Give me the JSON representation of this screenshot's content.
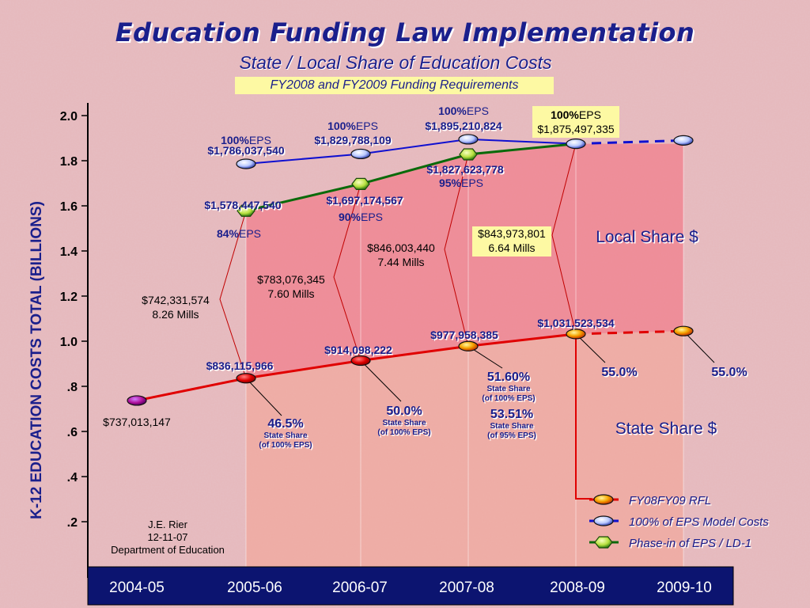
{
  "title": "Education Funding Law Implementation",
  "subtitle": "State / Local Share of Education Costs",
  "banner": "FY2008 and FY2009 Funding Requirements",
  "colors": {
    "rfl": "#e00000",
    "eps": "#1010d0",
    "phase_in": "#0a6a0a",
    "axis_band": "#0c1470",
    "label_blue": "#1a1f8c",
    "local_fill": "#f46a7a",
    "state_fill": "#f5a08e"
  },
  "chart_data": {
    "type": "line",
    "xlabel": "",
    "ylabel": "K-12 EDUCATION COSTS  TOTAL (BILLIONS)",
    "categories": [
      "2004-05",
      "2005-06",
      "2006-07",
      "2007-08",
      "2008-09",
      "2009-10"
    ],
    "ylim": [
      0,
      2.0
    ],
    "yticks": [
      ".2",
      ".4",
      ".6",
      ".8",
      "1.0",
      "1.2",
      "1.4",
      "1.6",
      "1.8",
      "2.0"
    ],
    "series": [
      {
        "name": "FY08FY09 RFL",
        "marker": "red",
        "values": [
          0.737,
          0.836,
          0.914,
          0.978,
          1.032,
          1.045
        ],
        "dashed_from_index": 4,
        "labels": [
          "$737,013,147",
          "$836,115,966",
          "$914,098,222",
          "$977,958,385",
          "$1,031,523,534",
          ""
        ]
      },
      {
        "name": "100% of EPS Model Costs",
        "marker": "blue",
        "values": [
          null,
          1.786,
          1.83,
          1.895,
          1.875,
          1.89
        ],
        "dashed_from_index": 4,
        "pct_labels": [
          "",
          "100%",
          "100%",
          "100%",
          "100%",
          ""
        ],
        "labels": [
          "",
          "$1,786,037,540",
          "$1,829,788,109",
          "$1,895,210,824",
          "$1,875,497,335",
          ""
        ]
      },
      {
        "name": "Phase-in of EPS / LD-1",
        "marker": "green",
        "values": [
          null,
          1.578,
          1.697,
          1.828,
          1.875,
          null
        ],
        "pct_labels": [
          "",
          "84%",
          "90%",
          "95%",
          "",
          ""
        ],
        "labels": [
          "",
          "$1,578,447,540",
          "$1,697,174,567",
          "$1,827,623,778",
          "",
          ""
        ]
      }
    ],
    "eps_suffix": "EPS",
    "local_share_labels": [
      {
        "index": 0,
        "value": "$742,331,574",
        "mills": "8.26 Mills"
      },
      {
        "index": 1,
        "value": "$783,076,345",
        "mills": "7.60 Mills"
      },
      {
        "index": 2,
        "value": "$846,003,440",
        "mills": "7.44 Mills"
      },
      {
        "index": 3,
        "value": "$843,973,801",
        "mills": "6.64 Mills"
      }
    ],
    "state_share_labels": [
      {
        "pct": "46.5%",
        "line1": "State Share",
        "line2": "(of 100% EPS)"
      },
      {
        "pct": "50.0%",
        "line1": "State Share",
        "line2": "(of 100% EPS)"
      },
      {
        "pct": "51.60%",
        "line1": "State Share",
        "line2": "(of 100% EPS)"
      },
      {
        "pct": "53.51%",
        "line1": "State Share",
        "line2": "(of 95% EPS)"
      },
      {
        "pct": "55.0%",
        "line1": "",
        "line2": ""
      },
      {
        "pct": "55.0%",
        "line1": "",
        "line2": ""
      }
    ],
    "region_labels": {
      "local": "Local Share $",
      "state": "State Share $"
    },
    "legend": [
      "FY08FY09 RFL",
      "100% of EPS Model Costs",
      "Phase-in of EPS / LD-1"
    ],
    "legend_position": "bottom-right"
  },
  "attribution": [
    "J.E. Rier",
    "12-11-07",
    "Department of Education"
  ]
}
